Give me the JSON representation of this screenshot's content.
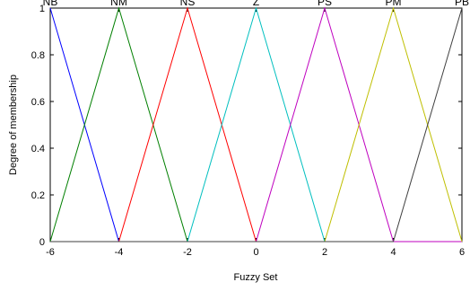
{
  "chart_data": {
    "type": "line",
    "xlabel": "Fuzzy Set",
    "ylabel": "Degree of membership",
    "xlim": [
      -6,
      6
    ],
    "ylim": [
      0,
      1
    ],
    "x_ticks": [
      -6,
      -4,
      -2,
      0,
      2,
      4,
      6
    ],
    "y_ticks": [
      0,
      0.2,
      0.4,
      0.6,
      0.8,
      1
    ],
    "x_tick_labels": [
      "-6",
      "-4",
      "-2",
      "0",
      "2",
      "4",
      "6"
    ],
    "y_tick_labels": [
      "0",
      "0.2",
      "0.4",
      "0.6",
      "0.8",
      "1"
    ],
    "grid": false,
    "series": [
      {
        "name": "NB",
        "color": "#0000ff",
        "x": [
          -6,
          -4,
          6
        ],
        "y": [
          1,
          0,
          0
        ]
      },
      {
        "name": "NM",
        "color": "#007f00",
        "x": [
          -6,
          -4,
          -2,
          6
        ],
        "y": [
          0,
          1,
          0,
          0
        ]
      },
      {
        "name": "NS",
        "color": "#ff0000",
        "x": [
          -6,
          -4,
          -2,
          0,
          6
        ],
        "y": [
          0,
          0,
          1,
          0,
          0
        ]
      },
      {
        "name": "Z",
        "color": "#00bfbf",
        "x": [
          -6,
          -2,
          0,
          2,
          6
        ],
        "y": [
          0,
          0,
          1,
          0,
          0
        ]
      },
      {
        "name": "PS",
        "color": "#bf00bf",
        "x": [
          -6,
          0,
          2,
          4,
          6
        ],
        "y": [
          0,
          0,
          1,
          0,
          0
        ]
      },
      {
        "name": "PM",
        "color": "#bfbf00",
        "x": [
          -6,
          2,
          4,
          6
        ],
        "y": [
          0,
          0,
          1,
          0
        ]
      },
      {
        "name": "PB",
        "color": "#3f3f3f",
        "x": [
          -6,
          4,
          6
        ],
        "y": [
          0,
          0,
          1
        ]
      }
    ]
  }
}
